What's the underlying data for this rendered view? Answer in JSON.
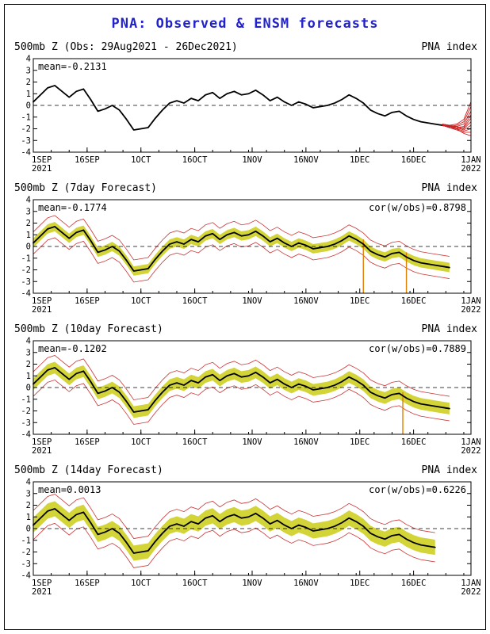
{
  "page": {
    "title": "PNA: Observed & ENSM forecasts"
  },
  "colors": {
    "title": "#2222cc",
    "black_line": "#000000",
    "band": "#d2d438",
    "envelope": "#cc3333",
    "ensemble": "#cc2222",
    "spike": "#e08000"
  },
  "axis": {
    "x_max": 122,
    "minor_tick_every": 5,
    "y_ticks": [
      -4,
      -3,
      -2,
      -1,
      0,
      1,
      2,
      3,
      4
    ],
    "x_ticks": [
      {
        "day": 0,
        "label": "1SEP",
        "sublabel": "2021",
        "align": "start"
      },
      {
        "day": 15,
        "label": "16SEP"
      },
      {
        "day": 30,
        "label": "1OCT"
      },
      {
        "day": 45,
        "label": "16OCT"
      },
      {
        "day": 61,
        "label": "1NOV"
      },
      {
        "day": 76,
        "label": "16NOV"
      },
      {
        "day": 91,
        "label": "1DEC"
      },
      {
        "day": 106,
        "label": "16DEC"
      },
      {
        "day": 122,
        "label": "1JAN",
        "sublabel": "2022"
      }
    ]
  },
  "chart_data": [
    {
      "type": "line",
      "title_left": "500mb Z (Obs: 29Aug2021 - 26Dec2021)",
      "title_right": "PNA index",
      "mean": -0.2131,
      "mean_label": "mean=-0.2131",
      "cor_label": "",
      "ylim": [
        -4,
        4
      ],
      "x_start_day": 0,
      "x_step": 2,
      "values": [
        0.3,
        0.9,
        1.5,
        1.7,
        1.2,
        0.7,
        1.2,
        1.4,
        0.5,
        -0.5,
        -0.3,
        0.0,
        -0.4,
        -1.2,
        -2.1,
        -2.0,
        -1.9,
        -1.1,
        -0.4,
        0.2,
        0.4,
        0.2,
        0.6,
        0.4,
        0.9,
        1.1,
        0.6,
        1.0,
        1.2,
        0.9,
        1.0,
        1.3,
        0.9,
        0.4,
        0.7,
        0.3,
        0.0,
        0.3,
        0.1,
        -0.2,
        -0.1,
        0.0,
        0.2,
        0.5,
        0.9,
        0.6,
        0.2,
        -0.4,
        -0.7,
        -0.9,
        -0.6,
        -0.5,
        -0.9,
        -1.2,
        -1.4,
        -1.5,
        -1.6,
        -1.7,
        -1.8
      ],
      "ensemble": {
        "start_day": 114,
        "step": 2,
        "members": [
          [
            -1.6,
            -1.7,
            -1.6,
            -1.2,
            0.3
          ],
          [
            -1.7,
            -1.8,
            -1.7,
            -1.4,
            -0.1
          ],
          [
            -1.7,
            -1.7,
            -1.8,
            -1.6,
            -0.5
          ],
          [
            -1.6,
            -1.8,
            -1.9,
            -1.8,
            -0.8
          ],
          [
            -1.7,
            -1.9,
            -2.0,
            -1.9,
            -1.1
          ],
          [
            -1.7,
            -1.8,
            -1.8,
            -2.0,
            -1.4
          ],
          [
            -1.6,
            -1.7,
            -1.9,
            -2.1,
            -1.7
          ],
          [
            -1.7,
            -1.8,
            -2.0,
            -2.2,
            -2.0
          ],
          [
            -1.7,
            -1.9,
            -2.1,
            -2.3,
            -2.3
          ],
          [
            -1.6,
            -1.8,
            -2.0,
            -2.4,
            -2.6
          ]
        ]
      }
    },
    {
      "type": "line",
      "title_left": "500mb Z (7day Forecast)",
      "title_right": "PNA index",
      "mean": -0.1774,
      "mean_label": "mean=-0.1774",
      "cor": 0.8798,
      "cor_label": "cor(w/obs)=0.8798",
      "ylim": [
        -4,
        4
      ],
      "x_start_day": 0,
      "x_step": 2,
      "band_halfwidth": 0.4,
      "env_halfwidth": 0.95,
      "spikes": [
        92,
        104
      ],
      "values": [
        0.3,
        0.9,
        1.5,
        1.7,
        1.2,
        0.7,
        1.2,
        1.4,
        0.5,
        -0.5,
        -0.3,
        0.0,
        -0.4,
        -1.2,
        -2.1,
        -2.0,
        -1.9,
        -1.1,
        -0.4,
        0.2,
        0.4,
        0.2,
        0.6,
        0.4,
        0.9,
        1.1,
        0.6,
        1.0,
        1.2,
        0.9,
        1.0,
        1.3,
        0.9,
        0.4,
        0.7,
        0.3,
        0.0,
        0.3,
        0.1,
        -0.2,
        -0.1,
        0.0,
        0.2,
        0.5,
        0.9,
        0.6,
        0.2,
        -0.4,
        -0.7,
        -0.9,
        -0.6,
        -0.5,
        -0.9,
        -1.2,
        -1.4,
        -1.5,
        -1.6,
        -1.7,
        -1.8
      ]
    },
    {
      "type": "line",
      "title_left": "500mb Z (10day Forecast)",
      "title_right": "PNA index",
      "mean": -0.1202,
      "mean_label": "mean=-0.1202",
      "cor": 0.7889,
      "cor_label": "cor(w/obs)=0.7889",
      "ylim": [
        -4,
        4
      ],
      "x_start_day": 0,
      "x_step": 2,
      "band_halfwidth": 0.5,
      "env_halfwidth": 1.05,
      "spikes": [
        103
      ],
      "values": [
        0.3,
        0.9,
        1.5,
        1.7,
        1.2,
        0.7,
        1.2,
        1.4,
        0.5,
        -0.5,
        -0.3,
        0.0,
        -0.4,
        -1.2,
        -2.1,
        -2.0,
        -1.9,
        -1.1,
        -0.4,
        0.2,
        0.4,
        0.2,
        0.6,
        0.4,
        0.9,
        1.1,
        0.6,
        1.0,
        1.2,
        0.9,
        1.0,
        1.3,
        0.9,
        0.4,
        0.7,
        0.3,
        0.0,
        0.3,
        0.1,
        -0.2,
        -0.1,
        0.0,
        0.2,
        0.5,
        0.9,
        0.6,
        0.2,
        -0.4,
        -0.7,
        -0.9,
        -0.6,
        -0.5,
        -0.9,
        -1.2,
        -1.4,
        -1.5,
        -1.6,
        -1.7,
        -1.8
      ]
    },
    {
      "type": "line",
      "title_left": "500mb Z (14day Forecast)",
      "title_right": "PNA index",
      "mean": 0.0013,
      "mean_label": "mean=0.0013",
      "cor": 0.6226,
      "cor_label": "cor(w/obs)=0.6226",
      "ylim": [
        -4,
        4
      ],
      "x_start_day": 0,
      "x_step": 2,
      "black_end_day": 112,
      "band_halfwidth": 0.65,
      "env_halfwidth": 1.25,
      "spikes": [],
      "values": [
        0.3,
        0.9,
        1.5,
        1.7,
        1.2,
        0.7,
        1.2,
        1.4,
        0.5,
        -0.5,
        -0.3,
        0.0,
        -0.4,
        -1.2,
        -2.1,
        -2.0,
        -1.9,
        -1.1,
        -0.4,
        0.2,
        0.4,
        0.2,
        0.6,
        0.4,
        0.9,
        1.1,
        0.6,
        1.0,
        1.2,
        0.9,
        1.0,
        1.3,
        0.9,
        0.4,
        0.7,
        0.3,
        0.0,
        0.3,
        0.1,
        -0.2,
        -0.1,
        0.0,
        0.2,
        0.5,
        0.9,
        0.6,
        0.2,
        -0.4,
        -0.7,
        -0.9,
        -0.6,
        -0.5,
        -0.9,
        -1.2,
        -1.4,
        -1.5,
        -1.6,
        -1.7,
        -2.2
      ]
    }
  ]
}
